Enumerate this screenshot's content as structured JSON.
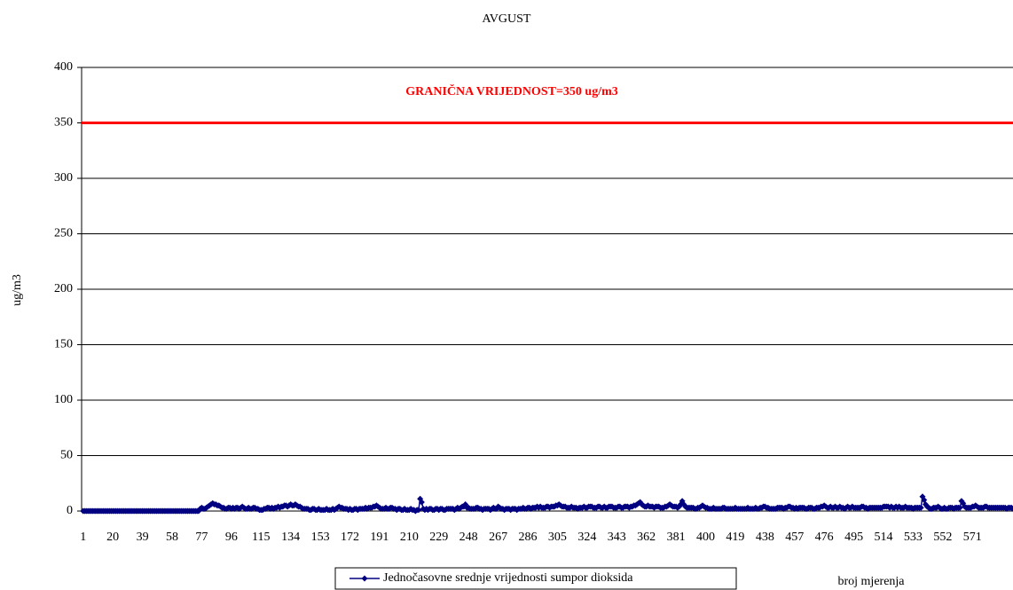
{
  "chart_data": {
    "type": "line",
    "title": "AVGUST",
    "ylabel": "ug/m3",
    "xlabel": "broj mjerenja",
    "threshold": {
      "value": 350,
      "label": "GRANIČNA VRIJEDNOST=350 ug/m3",
      "color": "#ff0000"
    },
    "xlim": [
      0,
      597
    ],
    "ylim": [
      0,
      400
    ],
    "xticks": [
      1,
      20,
      39,
      58,
      77,
      96,
      115,
      134,
      153,
      172,
      191,
      210,
      229,
      248,
      267,
      286,
      305,
      324,
      343,
      362,
      381,
      400,
      419,
      438,
      457,
      476,
      495,
      514,
      533,
      552,
      571
    ],
    "yticks": [
      0,
      50,
      100,
      150,
      200,
      250,
      300,
      350,
      400
    ],
    "grid": true,
    "x": [
      1,
      2,
      3,
      4,
      5,
      6,
      7,
      8,
      9,
      10,
      11,
      12,
      13,
      14,
      15,
      16,
      17,
      18,
      19,
      20,
      21,
      22,
      23,
      24,
      25,
      26,
      27,
      28,
      29,
      30,
      31,
      32,
      33,
      34,
      35,
      36,
      37,
      38,
      39,
      40,
      41,
      42,
      43,
      44,
      45,
      46,
      47,
      48,
      49,
      50,
      51,
      52,
      53,
      54,
      55,
      56,
      57,
      58,
      59,
      60,
      61,
      62,
      63,
      64,
      65,
      66,
      67,
      68,
      69,
      70,
      71,
      72,
      73,
      74,
      75,
      76,
      77,
      78,
      79,
      80,
      81,
      82,
      83,
      84,
      85,
      86,
      87,
      88,
      89,
      90,
      91,
      92,
      93,
      94,
      95,
      96,
      97,
      98,
      99,
      100,
      101,
      102,
      103,
      104,
      105,
      106,
      107,
      108,
      109,
      110,
      111,
      112,
      113,
      114,
      115,
      116,
      117,
      118,
      119,
      120,
      121,
      122,
      123,
      124,
      125,
      126,
      127,
      128,
      129,
      130,
      131,
      132,
      133,
      134,
      135,
      136,
      137,
      138,
      139,
      140,
      141,
      142,
      143,
      144,
      145,
      146,
      147,
      148,
      149,
      150,
      151,
      152,
      153,
      154,
      155,
      156,
      157,
      158,
      159,
      160,
      161,
      162,
      163,
      164,
      165,
      166,
      167,
      168,
      169,
      170,
      171,
      172,
      173,
      174,
      175,
      176,
      177,
      178,
      179,
      180,
      181,
      182,
      183,
      184,
      185,
      186,
      187,
      188,
      189,
      190,
      191,
      192,
      193,
      194,
      195,
      196,
      197,
      198,
      199,
      200,
      201,
      202,
      203,
      204,
      205,
      206,
      207,
      208,
      209,
      210,
      211,
      212,
      213,
      214,
      215,
      216,
      217,
      218,
      219,
      220,
      221,
      222,
      223,
      224,
      225,
      226,
      227,
      228,
      229,
      230,
      231,
      232,
      233,
      234,
      235,
      236,
      237,
      238,
      239,
      240,
      241,
      242,
      243,
      244,
      245,
      246,
      247,
      248,
      249,
      250,
      251,
      252,
      253,
      254,
      255,
      256,
      257,
      258,
      259,
      260,
      261,
      262,
      263,
      264,
      265,
      266,
      267,
      268,
      269,
      270,
      271,
      272,
      273,
      274,
      275,
      276,
      277,
      278,
      279,
      280,
      281,
      282,
      283,
      284,
      285,
      286,
      287,
      288,
      289,
      290,
      291,
      292,
      293,
      294,
      295,
      296,
      297,
      298,
      299,
      300,
      301,
      302,
      303,
      304,
      305,
      306,
      307,
      308,
      309,
      310,
      311,
      312,
      313,
      314,
      315,
      316,
      317,
      318,
      319,
      320,
      321,
      322,
      323,
      324,
      325,
      326,
      327,
      328,
      329,
      330,
      331,
      332,
      333,
      334,
      335,
      336,
      337,
      338,
      339,
      340,
      341,
      342,
      343,
      344,
      345,
      346,
      347,
      348,
      349,
      350,
      351,
      352,
      353,
      354,
      355,
      356,
      357,
      358,
      359,
      360,
      361,
      362,
      363,
      364,
      365,
      366,
      367,
      368,
      369,
      370,
      371,
      372,
      373,
      374,
      375,
      376,
      377,
      378,
      379,
      380,
      381,
      382,
      383,
      384,
      385,
      386,
      387,
      388,
      389,
      390,
      391,
      392,
      393,
      394,
      395,
      396,
      397,
      398,
      399,
      400,
      401,
      402,
      403,
      404,
      405,
      406,
      407,
      408,
      409,
      410,
      411,
      412,
      413,
      414,
      415,
      416,
      417,
      418,
      419,
      420,
      421,
      422,
      423,
      424,
      425,
      426,
      427,
      428,
      429,
      430,
      431,
      432,
      433,
      434,
      435,
      436,
      437,
      438,
      439,
      440,
      441,
      442,
      443,
      444,
      445,
      446,
      447,
      448,
      449,
      450,
      451,
      452,
      453,
      454,
      455,
      456,
      457,
      458,
      459,
      460,
      461,
      462,
      463,
      464,
      465,
      466,
      467,
      468,
      469,
      470,
      471,
      472,
      473,
      474,
      475,
      476,
      477,
      478,
      479,
      480,
      481,
      482,
      483,
      484,
      485,
      486,
      487,
      488,
      489,
      490,
      491,
      492,
      493,
      494,
      495,
      496,
      497,
      498,
      499,
      500,
      501,
      502,
      503,
      504,
      505,
      506,
      507,
      508,
      509,
      510,
      511,
      512,
      513,
      514,
      515,
      516,
      517,
      518,
      519,
      520,
      521,
      522,
      523,
      524,
      525,
      526,
      527,
      528,
      529,
      530,
      531,
      532,
      533,
      534,
      535,
      536,
      537,
      538,
      539,
      540,
      541,
      542,
      543,
      544,
      545,
      546,
      547,
      548,
      549,
      550,
      551,
      552,
      553,
      554,
      555,
      556,
      557,
      558,
      559,
      560,
      561,
      562,
      563,
      564,
      565,
      566,
      567,
      568,
      569,
      570,
      571,
      572,
      573,
      574,
      575,
      576,
      577,
      578,
      579,
      580,
      581,
      582,
      583,
      584,
      585,
      586,
      587,
      588,
      589,
      590,
      591,
      592,
      593,
      594,
      595,
      596,
      597
    ],
    "series": [
      {
        "name": "Jednočasovne srednje vrijednosti sumpor dioksida",
        "color": "#000080",
        "values": [
          0,
          0,
          0,
          0,
          0,
          0,
          0,
          0,
          0,
          0,
          0,
          0,
          0,
          0,
          0,
          0,
          0,
          0,
          0,
          0,
          0,
          0,
          0,
          0,
          0,
          0,
          0,
          0,
          0,
          0,
          0,
          0,
          0,
          0,
          0,
          0,
          0,
          0,
          0,
          0,
          0,
          0,
          0,
          0,
          0,
          0,
          0,
          0,
          0,
          0,
          0,
          0,
          0,
          0,
          0,
          0,
          0,
          0,
          0,
          0,
          0,
          0,
          0,
          0,
          0,
          0,
          0,
          0,
          0,
          0,
          0,
          0,
          0,
          0,
          0,
          2,
          3,
          2,
          2,
          3,
          4,
          5,
          6,
          7,
          6,
          6,
          5,
          5,
          4,
          3,
          3,
          2,
          2,
          3,
          3,
          2,
          3,
          2,
          3,
          3,
          2,
          3,
          4,
          3,
          2,
          2,
          3,
          2,
          2,
          3,
          3,
          2,
          2,
          1,
          1,
          1,
          2,
          2,
          3,
          3,
          2,
          3,
          2,
          3,
          3,
          4,
          3,
          4,
          4,
          5,
          5,
          4,
          5,
          6,
          5,
          5,
          6,
          5,
          4,
          4,
          3,
          2,
          2,
          2,
          2,
          1,
          1,
          2,
          2,
          1,
          1,
          2,
          1,
          1,
          1,
          1,
          2,
          1,
          1,
          1,
          2,
          1,
          2,
          3,
          4,
          3,
          3,
          2,
          2,
          2,
          1,
          2,
          1,
          1,
          2,
          2,
          1,
          2,
          2,
          2,
          2,
          3,
          2,
          3,
          3,
          3,
          4,
          4,
          5,
          4,
          3,
          2,
          2,
          2,
          3,
          2,
          2,
          3,
          3,
          2,
          2,
          1,
          2,
          2,
          1,
          1,
          2,
          1,
          1,
          1,
          2,
          1,
          1,
          0,
          1,
          1,
          11,
          8,
          2,
          1,
          2,
          1,
          2,
          2,
          1,
          1,
          2,
          2,
          1,
          2,
          2,
          1,
          1,
          2,
          2,
          2,
          2,
          2,
          1,
          2,
          3,
          2,
          3,
          4,
          4,
          6,
          3,
          3,
          2,
          2,
          2,
          2,
          3,
          3,
          2,
          2,
          1,
          2,
          2,
          2,
          2,
          1,
          2,
          3,
          2,
          2,
          4,
          3,
          2,
          2,
          1,
          2,
          2,
          2,
          1,
          2,
          2,
          2,
          1,
          2,
          2,
          2,
          3,
          2,
          2,
          3,
          3,
          2,
          3,
          3,
          3,
          4,
          3,
          4,
          3,
          3,
          3,
          4,
          4,
          3,
          4,
          4,
          4,
          5,
          5,
          6,
          5,
          4,
          4,
          4,
          3,
          3,
          3,
          4,
          3,
          3,
          3,
          2,
          3,
          3,
          3,
          4,
          3,
          3,
          4,
          4,
          4,
          3,
          3,
          3,
          4,
          4,
          3,
          3,
          4,
          3,
          3,
          4,
          4,
          4,
          3,
          3,
          3,
          4,
          4,
          3,
          3,
          4,
          4,
          4,
          3,
          4,
          4,
          5,
          5,
          6,
          7,
          8,
          6,
          5,
          4,
          4,
          5,
          4,
          4,
          4,
          3,
          4,
          4,
          4,
          3,
          3,
          3,
          4,
          4,
          5,
          6,
          5,
          4,
          4,
          4,
          3,
          4,
          6,
          9,
          6,
          4,
          3,
          3,
          3,
          3,
          3,
          2,
          2,
          3,
          3,
          4,
          5,
          4,
          3,
          3,
          2,
          2,
          2,
          3,
          2,
          2,
          2,
          2,
          2,
          3,
          3,
          2,
          2,
          2,
          2,
          2,
          2,
          3,
          2,
          2,
          2,
          2,
          2,
          2,
          2,
          3,
          2,
          2,
          2,
          2,
          3,
          2,
          2,
          3,
          3,
          4,
          4,
          3,
          3,
          2,
          2,
          2,
          2,
          2,
          3,
          3,
          3,
          3,
          2,
          3,
          3,
          4,
          4,
          3,
          3,
          2,
          3,
          2,
          3,
          3,
          3,
          3,
          2,
          2,
          3,
          3,
          3,
          2,
          2,
          3,
          3,
          3,
          4,
          4,
          5,
          4,
          3,
          3,
          4,
          3,
          3,
          4,
          3,
          3,
          4,
          3,
          3,
          2,
          3,
          4,
          3,
          3,
          4,
          3,
          3,
          3,
          3,
          3,
          4,
          4,
          3,
          3,
          2,
          3,
          3,
          3,
          3,
          3,
          3,
          3,
          3,
          3,
          4,
          4,
          4,
          4,
          3,
          4,
          3,
          3,
          4,
          3,
          4,
          3,
          3,
          3,
          4,
          3,
          3,
          3,
          3,
          2,
          3,
          3,
          3,
          3,
          3,
          13,
          10,
          6,
          4,
          3,
          2,
          2,
          3,
          3,
          3,
          4,
          3,
          2,
          2,
          3,
          2,
          2,
          3,
          3,
          3,
          2,
          3,
          3,
          3,
          3,
          9,
          7,
          4,
          3,
          3,
          3,
          3,
          4,
          4,
          5,
          4,
          3,
          3,
          3,
          3,
          4,
          4,
          3,
          3,
          3,
          3,
          3,
          3,
          3,
          3,
          3,
          3,
          3,
          3,
          2,
          3,
          3,
          3,
          2
        ]
      }
    ]
  }
}
